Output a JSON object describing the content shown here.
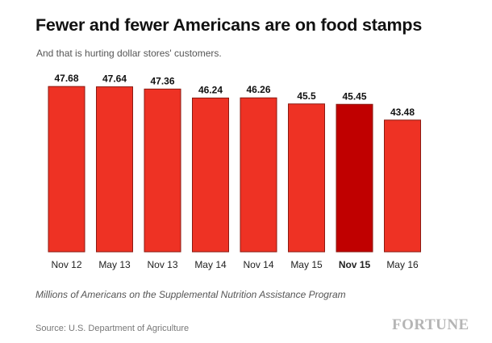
{
  "header": {
    "title": "Fewer and fewer Americans are on food stamps",
    "subtitle": "And that is hurting dollar stores' customers."
  },
  "footer": {
    "note": "Millions of Americans on the Supplemental Nutrition Assistance Program",
    "source": "Source: U.S. Department of Agriculture",
    "brand": "FORTUNE"
  },
  "colors": {
    "bar": "#ee3224",
    "bar_highlight": "#c00000",
    "bar_border": "#8a1a12"
  },
  "chart_data": {
    "type": "bar",
    "title": "Fewer and fewer Americans are on food stamps",
    "subtitle": "And that is hurting dollar stores' customers.",
    "xlabel": "",
    "ylabel": "",
    "categories": [
      "Nov 12",
      "May 13",
      "Nov 13",
      "May 14",
      "Nov 14",
      "May 15",
      "Nov 15",
      "May 16"
    ],
    "values": [
      47.68,
      47.64,
      47.36,
      46.24,
      46.26,
      45.5,
      45.45,
      43.48
    ],
    "value_labels": [
      "47.68",
      "47.64",
      "47.36",
      "46.24",
      "46.26",
      "45.5",
      "45.45",
      "43.48"
    ],
    "highlight_category": "Nov 15",
    "ylim": [
      27,
      48
    ],
    "grid": false,
    "legend": "none"
  }
}
